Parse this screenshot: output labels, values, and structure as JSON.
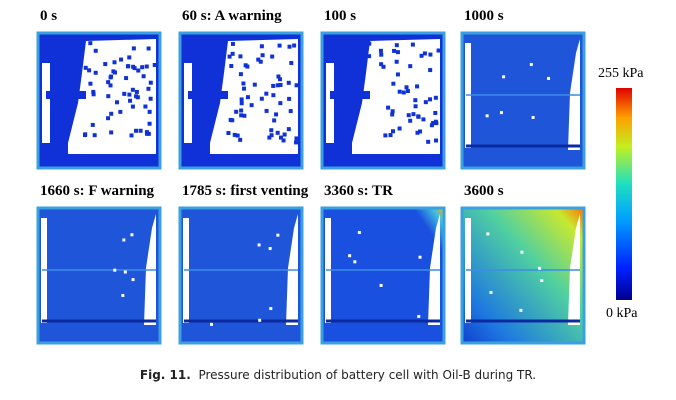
{
  "panels": [
    "0 s",
    "60 s: A warning",
    "100 s",
    "1000 s",
    "1660 s: F warning",
    "1785 s: first venting",
    "3360 s: TR",
    "3600 s"
  ],
  "colorbar": {
    "max_label": "255 kPa",
    "min_label": "0 kPa"
  },
  "caption": {
    "label": "Fig. 11.",
    "text": "Pressure distribution of battery cell with Oil-B during TR."
  }
}
